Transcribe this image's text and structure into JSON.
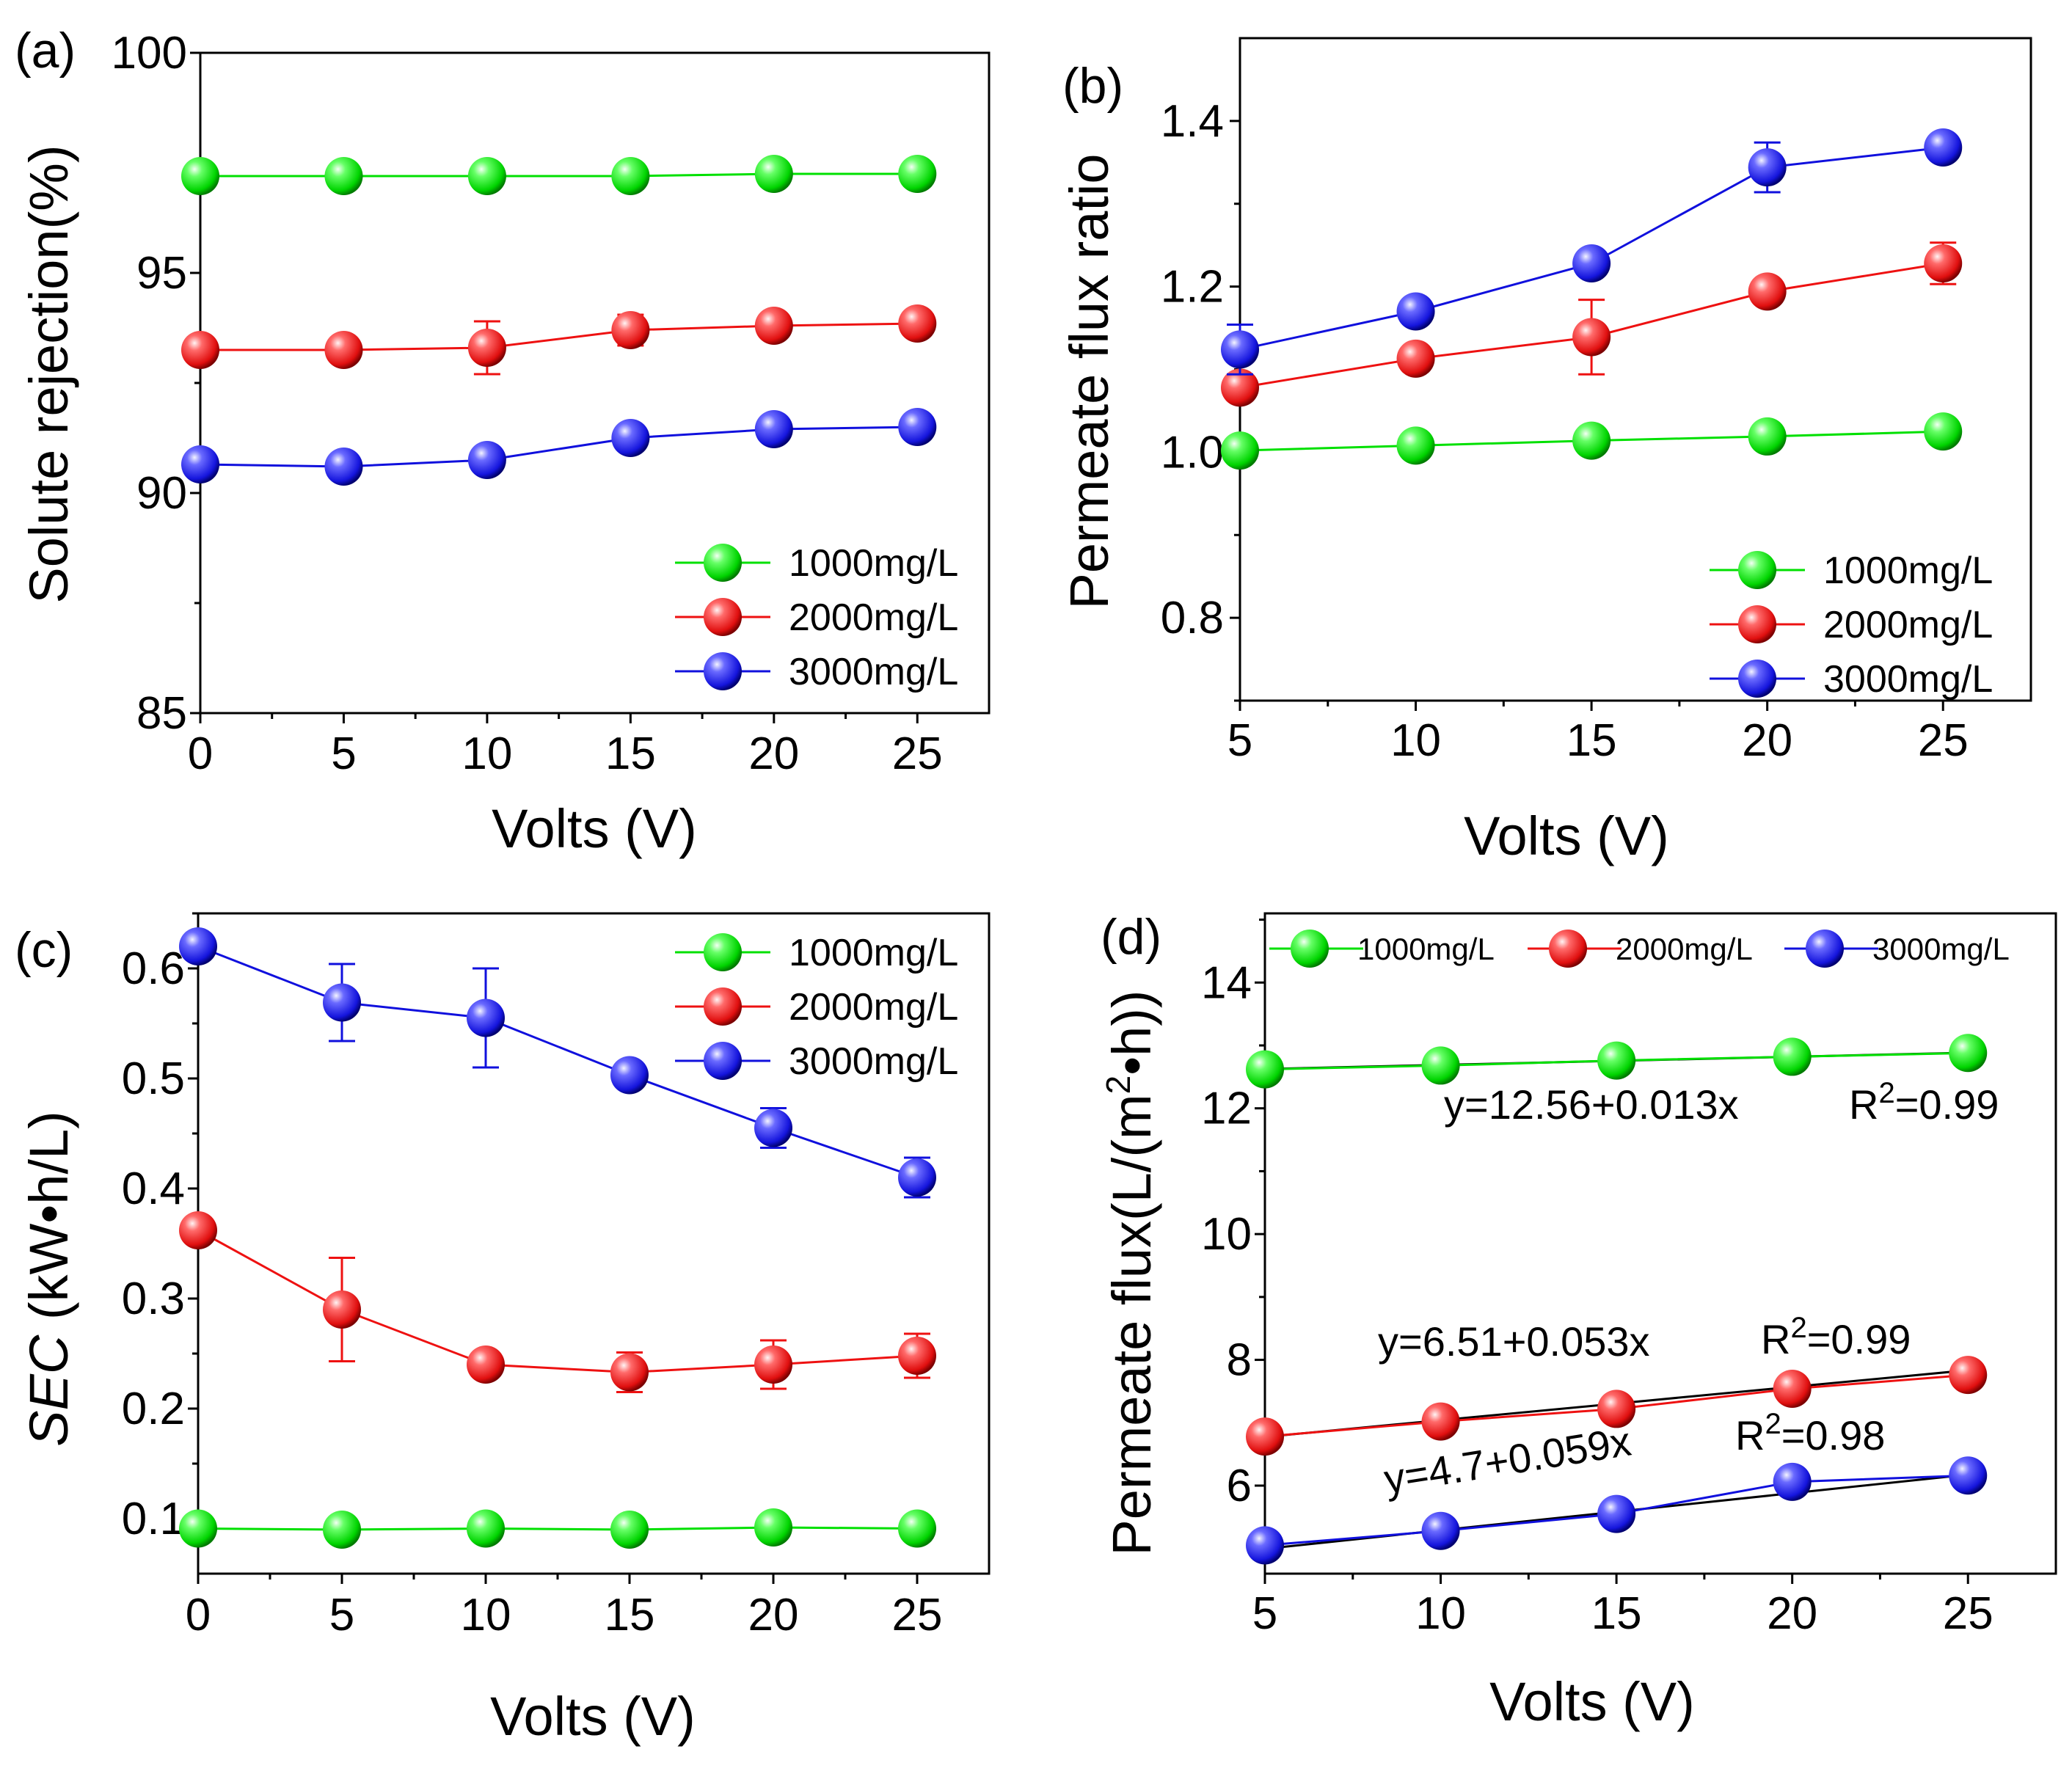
{
  "figure": {
    "colors": {
      "1000mg/L": "#00e000",
      "2000mg/L": "#ee1111",
      "3000mg/L": "#1010dd",
      "fit": "#000000"
    }
  },
  "chart_data": [
    {
      "id": "a",
      "panel_label": "(a)",
      "type": "line",
      "xlabel": "Volts (V)",
      "ylabel": "Solute rejection(%)",
      "x": [
        0,
        5,
        10,
        15,
        20,
        25
      ],
      "xlim": [
        0,
        27.5
      ],
      "ylim": [
        85,
        100
      ],
      "xticks": [
        0,
        5,
        10,
        15,
        20,
        25
      ],
      "yticks": [
        85,
        90,
        95,
        100
      ],
      "legend_position": "bottom-right",
      "series": [
        {
          "name": "1000mg/L",
          "values": [
            97.2,
            97.2,
            97.2,
            97.2,
            97.25,
            97.25
          ],
          "err": [
            0,
            0,
            0,
            0,
            0,
            0
          ]
        },
        {
          "name": "2000mg/L",
          "values": [
            93.25,
            93.25,
            93.3,
            93.7,
            93.8,
            93.85
          ],
          "err": [
            0,
            0,
            0.6,
            0.35,
            0,
            0
          ]
        },
        {
          "name": "3000mg/L",
          "values": [
            90.65,
            90.6,
            90.75,
            91.25,
            91.45,
            91.5
          ],
          "err": [
            0,
            0,
            0,
            0,
            0,
            0
          ]
        }
      ]
    },
    {
      "id": "b",
      "panel_label": "(b)",
      "type": "line",
      "xlabel": "Volts (V)",
      "ylabel": "Permeate flux ratio",
      "x": [
        5,
        10,
        15,
        20,
        25
      ],
      "xlim": [
        5,
        27.5
      ],
      "ylim": [
        0.7,
        1.5
      ],
      "xticks": [
        5,
        10,
        15,
        20,
        25
      ],
      "yticks": [
        0.8,
        1.0,
        1.2,
        1.4
      ],
      "legend_position": "bottom-right",
      "series": [
        {
          "name": "1000mg/L",
          "values": [
            1.002,
            1.008,
            1.014,
            1.019,
            1.025
          ],
          "err": [
            0,
            0,
            0,
            0,
            0
          ]
        },
        {
          "name": "2000mg/L",
          "values": [
            1.078,
            1.113,
            1.139,
            1.194,
            1.228
          ],
          "err": [
            0,
            0,
            0.045,
            0,
            0.025
          ]
        },
        {
          "name": "3000mg/L",
          "values": [
            1.124,
            1.17,
            1.228,
            1.344,
            1.368
          ],
          "err": [
            0.03,
            0,
            0,
            0.03,
            0
          ]
        }
      ]
    },
    {
      "id": "c",
      "panel_label": "(c)",
      "type": "line",
      "xlabel": "Volts (V)",
      "ylabel_prefix": "SEC",
      "ylabel_suffix": " (kW•h/L)",
      "x": [
        0,
        5,
        10,
        15,
        20,
        25
      ],
      "xlim": [
        0,
        27.5
      ],
      "ylim": [
        0.05,
        0.65
      ],
      "xticks": [
        0,
        5,
        10,
        15,
        20,
        25
      ],
      "yticks": [
        0.1,
        0.2,
        0.3,
        0.4,
        0.5,
        0.6
      ],
      "legend_position": "top-right",
      "series": [
        {
          "name": "1000mg/L",
          "values": [
            0.091,
            0.09,
            0.091,
            0.09,
            0.092,
            0.091
          ],
          "err": [
            0,
            0,
            0,
            0,
            0,
            0
          ]
        },
        {
          "name": "2000mg/L",
          "values": [
            0.362,
            0.29,
            0.24,
            0.233,
            0.24,
            0.248
          ],
          "err": [
            0,
            0.047,
            0,
            0.018,
            0.022,
            0.02
          ]
        },
        {
          "name": "3000mg/L",
          "values": [
            0.62,
            0.569,
            0.555,
            0.503,
            0.455,
            0.41
          ],
          "err": [
            0,
            0.035,
            0.045,
            0,
            0.018,
            0.018
          ]
        }
      ]
    },
    {
      "id": "d",
      "panel_label": "(d)",
      "type": "line",
      "xlabel": "Volts (V)",
      "ylabel_prefix": "Permeate flux(L/(m",
      "ylabel_sup": "2",
      "ylabel_suffix": "•h))",
      "x": [
        5,
        10,
        15,
        20,
        25
      ],
      "xlim": [
        5,
        27.5
      ],
      "ylim": [
        4.6,
        15.1
      ],
      "xticks": [
        5,
        10,
        15,
        20,
        25
      ],
      "yticks": [
        6,
        8,
        10,
        12,
        14
      ],
      "legend_position": "top",
      "series": [
        {
          "name": "1000mg/L",
          "values": [
            12.62,
            12.68,
            12.76,
            12.82,
            12.88
          ],
          "err": [
            0,
            0,
            0,
            0,
            0
          ]
        },
        {
          "name": "2000mg/L",
          "values": [
            6.78,
            7.02,
            7.22,
            7.54,
            7.76
          ],
          "err": [
            0,
            0,
            0,
            0,
            0
          ]
        },
        {
          "name": "3000mg/L",
          "values": [
            5.05,
            5.28,
            5.55,
            6.06,
            6.16
          ],
          "err": [
            0,
            0,
            0,
            0,
            0
          ]
        }
      ],
      "fits": [
        {
          "series": "1000mg/L",
          "intercept": 12.56,
          "slope": 0.013,
          "equation": "y=12.56+0.013x",
          "r2_label": "R",
          "r2_sup": "2",
          "r2_value": "=0.99"
        },
        {
          "series": "2000mg/L",
          "intercept": 6.51,
          "slope": 0.053,
          "equation": "y=6.51+0.053x",
          "r2_label": "R",
          "r2_sup": "2",
          "r2_value": "=0.99"
        },
        {
          "series": "3000mg/L",
          "intercept": 4.7,
          "slope": 0.059,
          "equation": "y=4.7+0.059x",
          "r2_label": "R",
          "r2_sup": "2",
          "r2_value": "=0.98"
        }
      ]
    }
  ]
}
